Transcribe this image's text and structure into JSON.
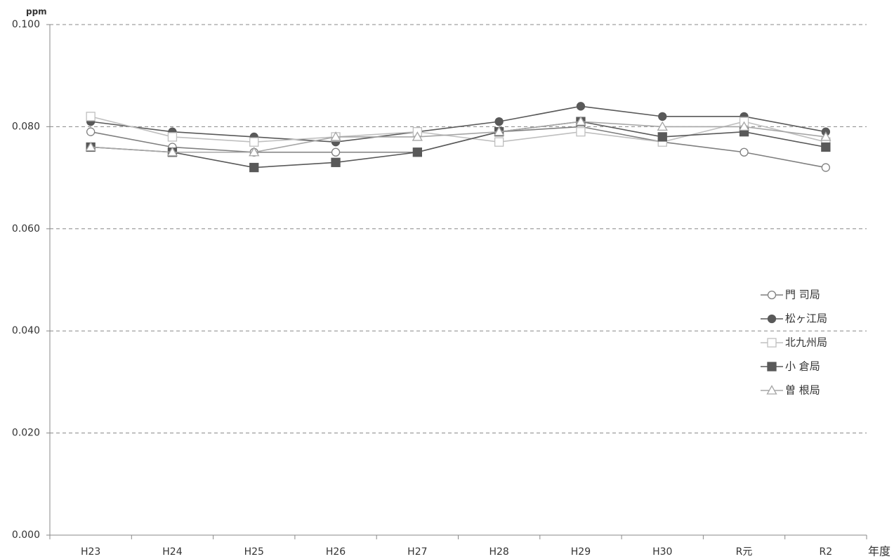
{
  "chart_data": {
    "type": "line",
    "y_label": "ppm",
    "x_label": "年度",
    "categories": [
      "H23",
      "H24",
      "H25",
      "H26",
      "H27",
      "H28",
      "H29",
      "H30",
      "R元",
      "R2"
    ],
    "series": [
      {
        "name": "門 司局",
        "color": "#7f7f7f",
        "marker": "circle",
        "filled": false,
        "values": [
          0.079,
          0.076,
          0.075,
          0.075,
          0.075,
          0.079,
          0.08,
          0.077,
          0.075,
          0.072
        ]
      },
      {
        "name": "松ヶ江局",
        "color": "#595959",
        "marker": "circle",
        "filled": true,
        "values": [
          0.081,
          0.079,
          0.078,
          0.077,
          0.079,
          0.081,
          0.084,
          0.082,
          0.082,
          0.079
        ]
      },
      {
        "name": "北九州局",
        "color": "#bfbfbf",
        "marker": "square",
        "filled": false,
        "values": [
          0.082,
          0.078,
          0.077,
          0.078,
          0.079,
          0.077,
          0.079,
          0.077,
          0.081,
          0.077
        ]
      },
      {
        "name": "小 倉局",
        "color": "#595959",
        "marker": "square",
        "filled": true,
        "values": [
          0.076,
          0.075,
          0.072,
          0.073,
          0.075,
          0.079,
          0.081,
          0.078,
          0.079,
          0.076
        ]
      },
      {
        "name": "曽 根局",
        "color": "#a6a6a6",
        "marker": "triangle",
        "filled": false,
        "values": [
          0.076,
          0.075,
          0.075,
          0.078,
          0.078,
          0.079,
          0.081,
          0.08,
          0.08,
          0.078
        ]
      }
    ],
    "ylim": [
      0,
      0.1
    ],
    "yticks": [
      {
        "value": 0,
        "label": "0.000"
      },
      {
        "value": 0.02,
        "label": "0.020"
      },
      {
        "value": 0.04,
        "label": "0.040"
      },
      {
        "value": 0.06,
        "label": "0.060"
      },
      {
        "value": 0.08,
        "label": "0.080"
      },
      {
        "value": 0.1,
        "label": "0.100"
      }
    ],
    "grid": true,
    "legend": "right"
  }
}
